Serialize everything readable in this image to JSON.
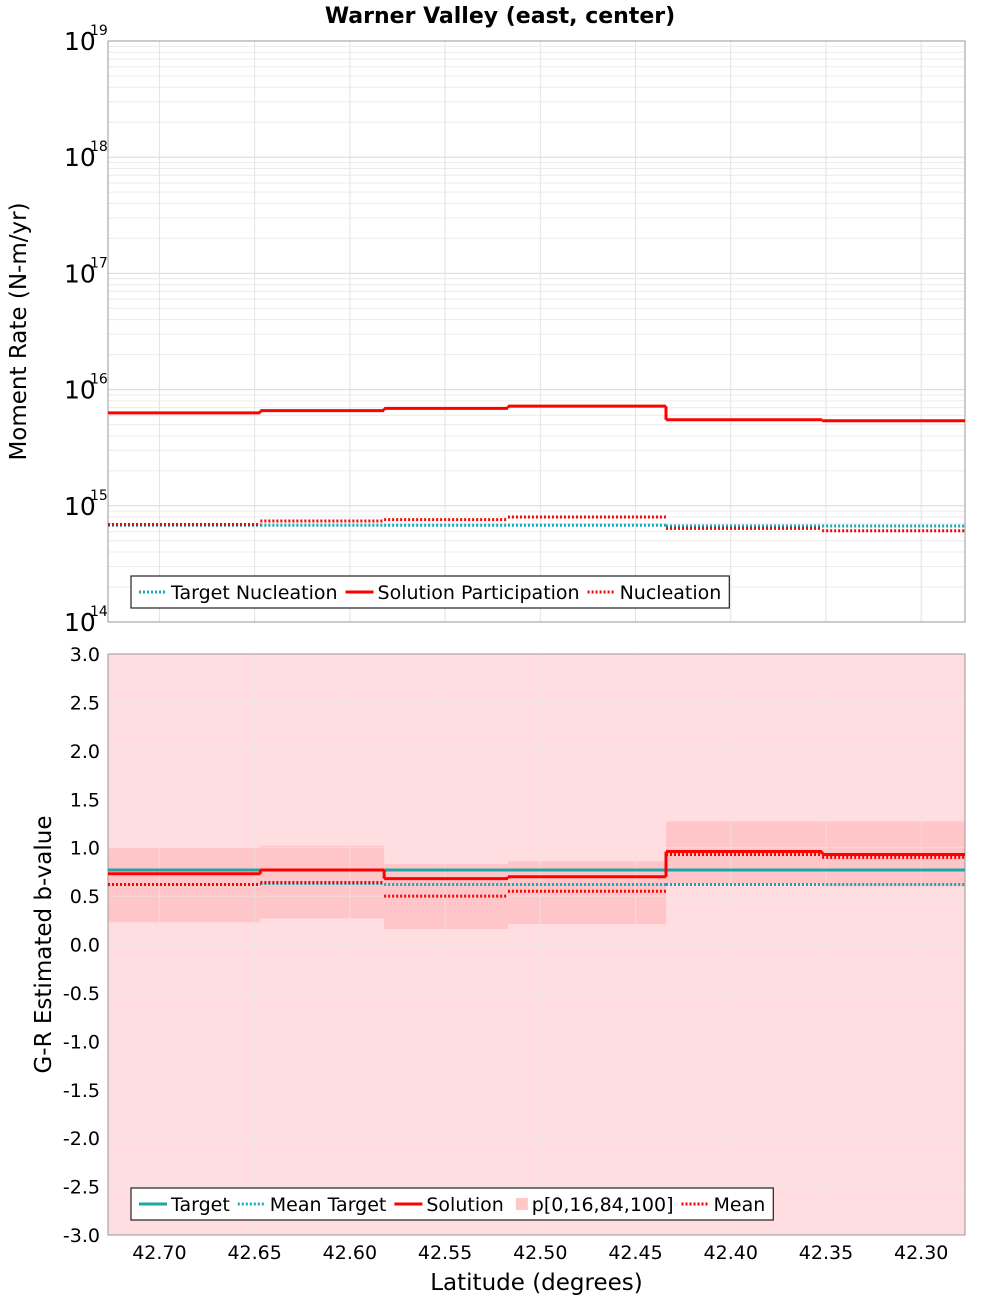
{
  "chart_data": [
    {
      "type": "line",
      "title": "Warner Valley (east, center)",
      "ylabel": "Moment Rate (N-m/yr)",
      "xlabel": "",
      "yscale": "log",
      "ylim": [
        100000000000000.0,
        1e+19
      ],
      "xlim": [
        42.727,
        42.277
      ],
      "x_reversed": true,
      "grid": true,
      "y_ticks": [
        {
          "base": "10",
          "exp": "14",
          "value": 100000000000000.0
        },
        {
          "base": "10",
          "exp": "15",
          "value": 1000000000000000.0
        },
        {
          "base": "10",
          "exp": "16",
          "value": 1e+16
        },
        {
          "base": "10",
          "exp": "17",
          "value": 1e+17
        },
        {
          "base": "10",
          "exp": "18",
          "value": 1e+18
        },
        {
          "base": "10",
          "exp": "19",
          "value": 1e+19
        }
      ],
      "bin_edges": [
        42.727,
        42.647,
        42.582,
        42.517,
        42.434,
        42.352,
        42.277
      ],
      "series": [
        {
          "name": "Target Nucleation",
          "style": "dotted",
          "color": "#17a8b8",
          "values": [
            680000000000000.0,
            680000000000000.0,
            680000000000000.0,
            680000000000000.0,
            670000000000000.0,
            670000000000000.0
          ]
        },
        {
          "name": "Solution Participation",
          "style": "solid",
          "color": "#ff0000",
          "values": [
            6300000000000000.0,
            6600000000000000.0,
            6900000000000000.0,
            7200000000000000.0,
            5500000000000000.0,
            5400000000000000.0
          ]
        },
        {
          "name": "Nucleation",
          "style": "dotted",
          "color": "#ff0000",
          "values": [
            690000000000000.0,
            740000000000000.0,
            760000000000000.0,
            800000000000000.0,
            640000000000000.0,
            610000000000000.0
          ]
        }
      ],
      "legend": {
        "placement": "bottom-left",
        "items": [
          {
            "label": "Target Nucleation",
            "style": "dotted",
            "color": "#17a8b8"
          },
          {
            "label": "Solution Participation",
            "style": "solid",
            "color": "#ff0000"
          },
          {
            "label": "Nucleation",
            "style": "dotted",
            "color": "#ff0000"
          }
        ]
      }
    },
    {
      "type": "line",
      "title": "",
      "ylabel": "G-R Estimated b-value",
      "xlabel": "Latitude (degrees)",
      "ylim": [
        -3.0,
        3.0
      ],
      "xlim": [
        42.727,
        42.277
      ],
      "x_reversed": true,
      "grid": true,
      "y_ticks": [
        "3.0",
        "2.5",
        "2.0",
        "1.5",
        "1.0",
        "0.5",
        "0.0",
        "-0.5",
        "-1.0",
        "-1.5",
        "-2.0",
        "-2.5",
        "-3.0"
      ],
      "x_ticks": [
        "42.70",
        "42.65",
        "42.60",
        "42.55",
        "42.50",
        "42.45",
        "42.40",
        "42.35",
        "42.30"
      ],
      "bin_edges": [
        42.727,
        42.647,
        42.582,
        42.517,
        42.434,
        42.352,
        42.277
      ],
      "band_outer": [
        -3.0,
        3.0
      ],
      "band_inner": [
        {
          "lo": 0.23,
          "hi": 1.0
        },
        {
          "lo": 0.27,
          "hi": 1.02
        },
        {
          "lo": 0.16,
          "hi": 0.83
        },
        {
          "lo": 0.21,
          "hi": 0.86
        },
        {
          "lo": 0.63,
          "hi": 1.27
        },
        {
          "lo": 0.6,
          "hi": 1.27
        }
      ],
      "series": [
        {
          "name": "Target",
          "style": "solid",
          "color": "#1fa5a5",
          "values": [
            0.77,
            0.77,
            0.77,
            0.77,
            0.77,
            0.77
          ]
        },
        {
          "name": "Mean Target",
          "style": "dotted",
          "color": "#17a8b8",
          "values": [
            0.62,
            0.63,
            0.62,
            0.62,
            0.62,
            0.62
          ]
        },
        {
          "name": "Solution",
          "style": "solid",
          "color": "#ff0000",
          "values": [
            0.73,
            0.77,
            0.68,
            0.7,
            0.96,
            0.93
          ]
        },
        {
          "name": "Mean",
          "style": "dotted",
          "color": "#ff0000",
          "values": [
            0.62,
            0.64,
            0.5,
            0.55,
            0.93,
            0.9
          ]
        }
      ],
      "legend": {
        "placement": "bottom-left",
        "items": [
          {
            "label": "Target",
            "style": "solid",
            "color": "#1fa5a5"
          },
          {
            "label": "Mean Target",
            "style": "dotted",
            "color": "#17a8b8"
          },
          {
            "label": "Solution",
            "style": "solid",
            "color": "#ff0000"
          },
          {
            "label": "p[0,16,84,100]",
            "style": "box",
            "color": "#ffc8c8"
          },
          {
            "label": "Mean",
            "style": "dotted",
            "color": "#ff0000"
          }
        ]
      }
    }
  ]
}
